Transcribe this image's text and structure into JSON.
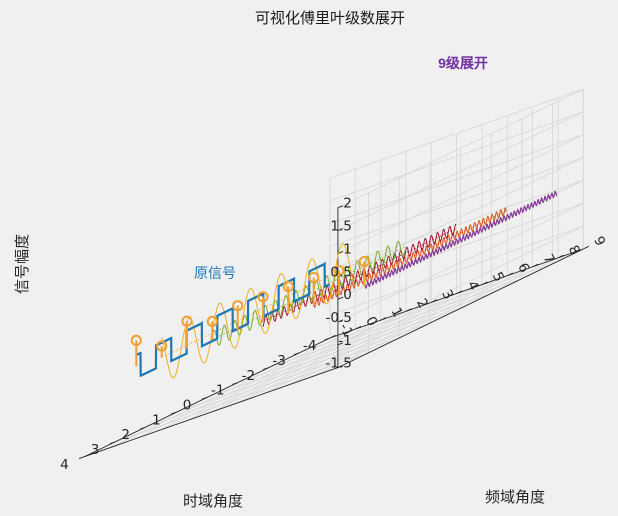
{
  "chart_data": {
    "type": "line",
    "title": "可视化傅里叶级数展开",
    "xlabel": "时域角度",
    "ylabel": "频域角度",
    "zlabel": "信号幅度",
    "annotation_top": "9级展开",
    "annotation_mid": "原信号",
    "xlim": [
      -4,
      4
    ],
    "ylim": [
      -1,
      9
    ],
    "zlim": [
      -1.5,
      2
    ],
    "x_ticks": [
      "4",
      "3",
      "2",
      "1",
      "0",
      "-1",
      "-2",
      "-3",
      "-4"
    ],
    "x_tick_values": [
      4,
      3,
      2,
      1,
      0,
      -1,
      -2,
      -3,
      -4
    ],
    "y_ticks": [
      "-1",
      "0",
      "1",
      "2",
      "3",
      "4",
      "5",
      "6",
      "7",
      "8",
      "9"
    ],
    "y_tick_values": [
      -1,
      0,
      1,
      2,
      3,
      4,
      5,
      6,
      7,
      8,
      9
    ],
    "z_ticks": [
      "2",
      "1.5",
      "1",
      "0.5",
      "0",
      "-0.5",
      "-1",
      "-1.5"
    ],
    "z_tick_values": [
      2,
      1.5,
      1,
      0.5,
      0,
      -0.5,
      -1,
      -1.5
    ],
    "grid": true,
    "signal": {
      "name": "原信号",
      "kind": "square wave",
      "amplitude": 0.25,
      "frequency": 1,
      "x_range": [
        -3.14,
        3.14
      ],
      "y_position": 0,
      "color": "#1f77b4"
    },
    "harmonics": [
      {
        "order": 1,
        "amplitude": 0.57,
        "frequency": 1,
        "y_position": 1,
        "color": "#EDB120"
      },
      {
        "order": 3,
        "amplitude": 0.19,
        "frequency": 3,
        "y_position": 3,
        "color": "#77AC30"
      },
      {
        "order": 5,
        "amplitude": 0.11,
        "frequency": 5,
        "y_position": 5,
        "color": "#A2142F"
      },
      {
        "order": 7,
        "amplitude": 0.08,
        "frequency": 7,
        "y_position": 7,
        "color": "#D95319"
      },
      {
        "order": 9,
        "amplitude": 0.06,
        "frequency": 9,
        "y_position": 9,
        "color": "#7E2F8E"
      }
    ],
    "spectrum_stems": {
      "color": "#F0A030",
      "x_position": 3.14,
      "values": [
        0.57,
        0.25,
        0.6,
        0.4,
        0.55,
        0.55,
        0.58,
        0.58,
        0.54,
        0.54
      ]
    }
  }
}
